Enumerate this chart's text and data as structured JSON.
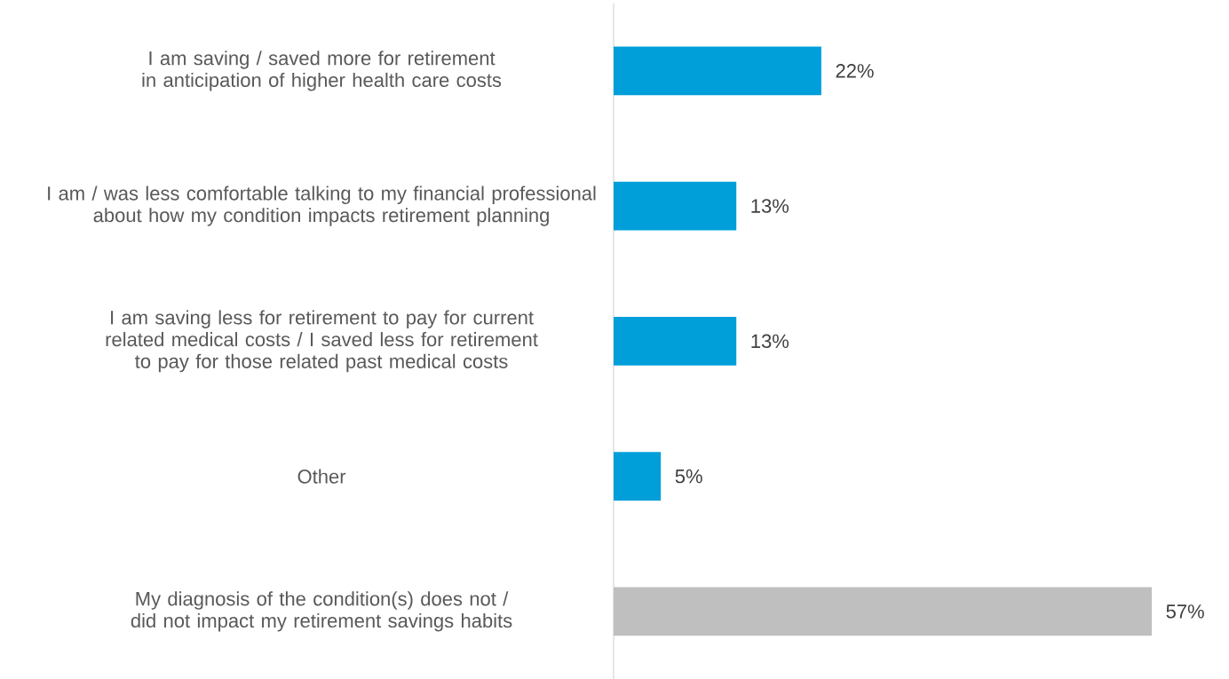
{
  "chart_data": {
    "type": "bar",
    "orientation": "horizontal",
    "categories": [
      "I am saving / saved more for retirement in anticipation of higher health care costs",
      "I am / was less comfortable talking to my financial professional about how my condition impacts retirement planning",
      "I am saving less for retirement to pay for current related medical costs / I saved less for retirement to pay for those related past medical costs",
      "Other",
      "My diagnosis of the condition(s) does not / did not impact my retirement savings habits"
    ],
    "values": [
      22,
      13,
      13,
      5,
      57
    ],
    "colors": [
      "#009fda",
      "#009fda",
      "#009fda",
      "#009fda",
      "#bfbfbf"
    ],
    "value_labels": [
      "22%",
      "13%",
      "13%",
      "5%",
      "57%"
    ]
  }
}
